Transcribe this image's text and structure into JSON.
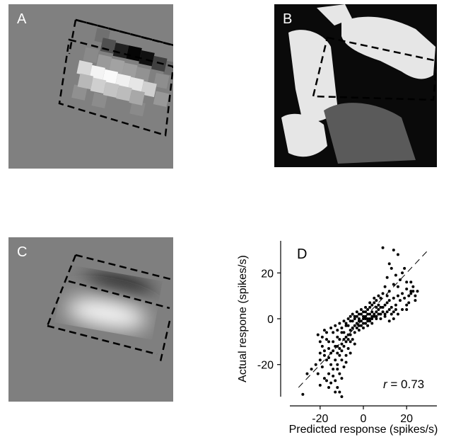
{
  "panels": {
    "a": {
      "letter": "A",
      "colors": {
        "bg": "#808080",
        "dark": "#101010",
        "light": "#f8f8f8",
        "box": "#000000"
      }
    },
    "b": {
      "letter": "B",
      "colors": {
        "bg": "#0a0a0a",
        "light": "#e6e6e6",
        "box": "#000000"
      }
    },
    "c": {
      "letter": "C",
      "colors": {
        "bg": "#7f7f7f",
        "dark": "#000000",
        "light": "#ffffff",
        "box": "#000000"
      }
    },
    "d": {
      "letter": "D",
      "r_label": "r",
      "r_value": " = 0.73"
    }
  },
  "chart_data": {
    "type": "scatter",
    "xlabel": "Predicted response (spikes/s)",
    "ylabel": "Actual respone (spikes/s)",
    "xlim": [
      -34,
      34
    ],
    "ylim": [
      -34,
      34
    ],
    "xticks": [
      -20,
      0,
      20
    ],
    "yticks": [
      -20,
      0,
      20
    ],
    "identity_line": true,
    "annotation": "r = 0.73",
    "point_color": "#000000",
    "points": [
      [
        9,
        31
      ],
      [
        12,
        24
      ],
      [
        14,
        30
      ],
      [
        16,
        28
      ],
      [
        18,
        20
      ],
      [
        20,
        16
      ],
      [
        22,
        12
      ],
      [
        25,
        12
      ],
      [
        24,
        8
      ],
      [
        20,
        6
      ],
      [
        18,
        4
      ],
      [
        16,
        2
      ],
      [
        14,
        0
      ],
      [
        12,
        -1
      ],
      [
        10,
        1
      ],
      [
        8,
        2
      ],
      [
        6,
        1
      ],
      [
        4,
        0
      ],
      [
        2,
        2
      ],
      [
        0,
        1
      ],
      [
        -2,
        0
      ],
      [
        -4,
        0
      ],
      [
        -6,
        1
      ],
      [
        -8,
        -2
      ],
      [
        -10,
        -4
      ],
      [
        -12,
        -5
      ],
      [
        -14,
        -6
      ],
      [
        -16,
        -10
      ],
      [
        -18,
        -14
      ],
      [
        -20,
        -18
      ],
      [
        -22,
        -20
      ],
      [
        -24,
        -22
      ],
      [
        -26,
        -24
      ],
      [
        -28,
        -33
      ],
      [
        -20,
        -29
      ],
      [
        -18,
        -26
      ],
      [
        -16,
        -24
      ],
      [
        -14,
        -22
      ],
      [
        -12,
        -20
      ],
      [
        -10,
        -18
      ],
      [
        -8,
        -16
      ],
      [
        -6,
        -10
      ],
      [
        -4,
        -6
      ],
      [
        -2,
        -3
      ],
      [
        0,
        -2
      ],
      [
        2,
        -1
      ],
      [
        4,
        1
      ],
      [
        6,
        3
      ],
      [
        8,
        5
      ],
      [
        10,
        6
      ],
      [
        12,
        8
      ],
      [
        14,
        9
      ],
      [
        16,
        10
      ],
      [
        18,
        11
      ],
      [
        20,
        13
      ],
      [
        22,
        11
      ],
      [
        7,
        10
      ],
      [
        5,
        7
      ],
      [
        3,
        5
      ],
      [
        1,
        3
      ],
      [
        -1,
        2
      ],
      [
        -3,
        1
      ],
      [
        -5,
        -1
      ],
      [
        -7,
        -3
      ],
      [
        -9,
        -6
      ],
      [
        -11,
        -9
      ],
      [
        -13,
        -12
      ],
      [
        -15,
        -15
      ],
      [
        -17,
        -18
      ],
      [
        -19,
        -21
      ],
      [
        -21,
        -24
      ],
      [
        -13,
        -27
      ],
      [
        -12,
        -30
      ],
      [
        -11,
        -32
      ],
      [
        -10,
        -34
      ],
      [
        -14,
        -25
      ],
      [
        -15,
        -20
      ],
      [
        -16,
        -17
      ],
      [
        -12,
        -15
      ],
      [
        -11,
        -13
      ],
      [
        -10,
        -11
      ],
      [
        -9,
        -9
      ],
      [
        -8,
        -8
      ],
      [
        -7,
        -7
      ],
      [
        -6,
        -5
      ],
      [
        -5,
        -4
      ],
      [
        -4,
        -3
      ],
      [
        -3,
        -2
      ],
      [
        -2,
        -1
      ],
      [
        -1,
        -1
      ],
      [
        1,
        0
      ],
      [
        3,
        0
      ],
      [
        5,
        2
      ],
      [
        7,
        4
      ],
      [
        9,
        5
      ],
      [
        11,
        7
      ],
      [
        13,
        5
      ],
      [
        15,
        6
      ],
      [
        17,
        8
      ],
      [
        19,
        9
      ],
      [
        21,
        10
      ],
      [
        23,
        12
      ],
      [
        10,
        14
      ],
      [
        11,
        18
      ],
      [
        13,
        22
      ],
      [
        15,
        19
      ],
      [
        8,
        9
      ],
      [
        6,
        8
      ],
      [
        4,
        6
      ],
      [
        2,
        4
      ],
      [
        0,
        3
      ],
      [
        -2,
        2
      ],
      [
        -4,
        1
      ],
      [
        -6,
        -1
      ],
      [
        -8,
        -3
      ],
      [
        -10,
        -6
      ],
      [
        -12,
        -8
      ],
      [
        -14,
        -10
      ],
      [
        -16,
        -13
      ],
      [
        -18,
        -16
      ],
      [
        -20,
        -10
      ],
      [
        -19,
        -8
      ],
      [
        -17,
        -6
      ],
      [
        -15,
        -4
      ],
      [
        -13,
        -3
      ],
      [
        -11,
        -2
      ],
      [
        -9,
        -1
      ],
      [
        -7,
        0
      ],
      [
        -5,
        2
      ],
      [
        -3,
        3
      ],
      [
        -1,
        4
      ],
      [
        1,
        5
      ],
      [
        3,
        7
      ],
      [
        5,
        9
      ],
      [
        -12,
        -22
      ],
      [
        -11,
        -24
      ],
      [
        -13,
        -18
      ],
      [
        -14,
        -14
      ],
      [
        -10,
        -26
      ],
      [
        -9,
        -21
      ],
      [
        -8,
        -19
      ],
      [
        -7,
        -13
      ],
      [
        -6,
        -15
      ],
      [
        -5,
        -9
      ],
      [
        -4,
        -11
      ],
      [
        -15,
        -28
      ],
      [
        -16,
        -30
      ],
      [
        -17,
        -27
      ],
      [
        -13,
        -32
      ],
      [
        -12,
        -12
      ],
      [
        -11,
        -16
      ],
      [
        -10,
        -14
      ],
      [
        -9,
        -12
      ],
      [
        -8,
        -10
      ],
      [
        -7,
        -9
      ],
      [
        -6,
        -7
      ],
      [
        0,
        0
      ],
      [
        1,
        1
      ],
      [
        2,
        0
      ],
      [
        3,
        2
      ],
      [
        4,
        3
      ],
      [
        5,
        1
      ],
      [
        6,
        0
      ],
      [
        7,
        2
      ],
      [
        8,
        0
      ],
      [
        9,
        3
      ],
      [
        10,
        2
      ],
      [
        11,
        3
      ],
      [
        12,
        4
      ],
      [
        13,
        2
      ],
      [
        14,
        3
      ],
      [
        15,
        4
      ],
      [
        -3,
        -4
      ],
      [
        -2,
        -5
      ],
      [
        -1,
        -3
      ],
      [
        0,
        -4
      ],
      [
        1,
        -2
      ],
      [
        2,
        -3
      ],
      [
        3,
        -1
      ],
      [
        4,
        -2
      ],
      [
        -18,
        -5
      ],
      [
        -17,
        -9
      ],
      [
        -19,
        -12
      ],
      [
        -20,
        -15
      ],
      [
        -21,
        -7
      ],
      [
        16,
        14
      ],
      [
        17,
        17
      ],
      [
        19,
        22
      ],
      [
        14,
        15
      ],
      [
        12,
        12
      ],
      [
        11,
        10
      ],
      [
        9,
        11
      ],
      [
        7,
        6
      ],
      [
        6,
        5
      ],
      [
        22,
        16
      ],
      [
        23,
        14
      ],
      [
        24,
        10
      ],
      [
        21,
        7
      ],
      [
        20,
        4
      ]
    ]
  }
}
